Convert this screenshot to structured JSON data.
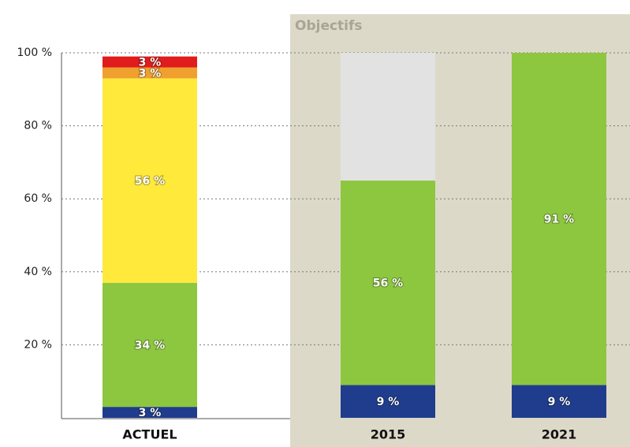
{
  "chart_data": {
    "type": "stacked-bar",
    "annotation": "Objectifs",
    "categories": [
      "ACTUEL",
      "2015",
      "2021"
    ],
    "series": [
      {
        "color": "#1f3d8c",
        "values": [
          3,
          9,
          9
        ],
        "value_labels": [
          "3 %",
          "9 %",
          "9 %"
        ]
      },
      {
        "color": "#8dc63f",
        "values": [
          34,
          56,
          91
        ],
        "value_labels": [
          "34 %",
          "56 %",
          "91 %"
        ]
      },
      {
        "color": "#ffe93b",
        "values": [
          56,
          null,
          null
        ],
        "value_labels": [
          "56 %",
          null,
          null
        ]
      },
      {
        "color": "#f0a02e",
        "values": [
          3,
          null,
          null
        ],
        "value_labels": [
          "3 %",
          null,
          null
        ]
      },
      {
        "color": "#e01c1c",
        "values": [
          3,
          null,
          null
        ],
        "value_labels": [
          "3 %",
          null,
          null
        ]
      },
      {
        "color": "#e2e2e2",
        "values": [
          null,
          35,
          null
        ]
      }
    ],
    "ylim": [
      0,
      100
    ],
    "yticks": [
      {
        "value": 20,
        "label": "20 %"
      },
      {
        "value": 40,
        "label": "40 %"
      },
      {
        "value": 60,
        "label": "60 %"
      },
      {
        "value": 80,
        "label": "80 %"
      },
      {
        "value": 100,
        "label": "100 %"
      }
    ],
    "grid": true
  }
}
